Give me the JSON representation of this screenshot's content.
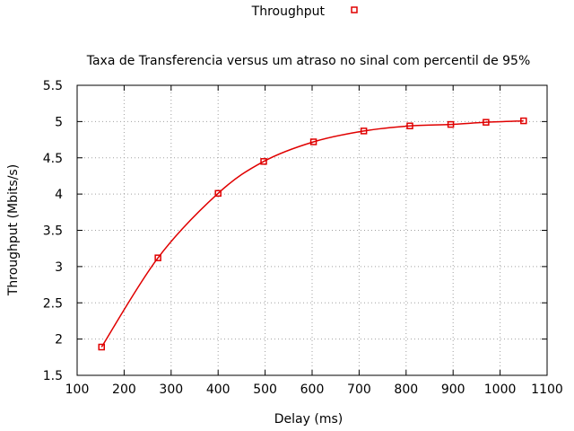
{
  "chart_data": {
    "type": "line",
    "title": "Taxa de Transferencia versus um atraso no sinal com percentil de 95%",
    "xlabel": "Delay (ms)",
    "ylabel": "Throughput (Mbits/s)",
    "xlim": [
      100,
      1100
    ],
    "ylim": [
      1.5,
      5.5
    ],
    "xticks": [
      100,
      200,
      300,
      400,
      500,
      600,
      700,
      800,
      900,
      1000,
      1100
    ],
    "yticks": [
      1.5,
      2,
      2.5,
      3,
      3.5,
      4,
      4.5,
      5,
      5.5
    ],
    "grid": true,
    "legend_position": "top-center",
    "series": [
      {
        "name": "Throughput",
        "color": "#e00000",
        "marker": "square",
        "x": [
          152,
          272,
          400,
          497,
          603,
          710,
          808,
          895,
          970,
          1050
        ],
        "y": [
          1.89,
          3.12,
          4.01,
          4.45,
          4.72,
          4.87,
          4.94,
          4.96,
          4.99,
          5.01
        ]
      }
    ]
  }
}
